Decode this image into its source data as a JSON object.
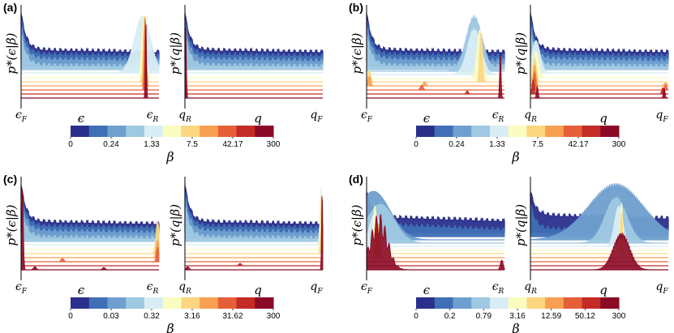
{
  "figure": {
    "y_labels": [
      "p*(ϵ|β)",
      "p*(q|β)"
    ],
    "colorbar_label": "β",
    "palette": [
      "#2a2f8c",
      "#3f6fb4",
      "#6f9fcf",
      "#9fc8e2",
      "#d8edf4",
      "#fafcc0",
      "#fcd681",
      "#f7a052",
      "#e55f38",
      "#c42a26",
      "#8b0a26"
    ]
  },
  "chart_data": [
    {
      "panel": "(a)",
      "type": "area",
      "subplots": [
        {
          "variable": "ϵ",
          "xlabel": "ϵ",
          "x_ticks": [
            "ϵF",
            "ϵR"
          ],
          "ylabel": "p*(ϵ|β)"
        },
        {
          "variable": "q",
          "xlabel": "q",
          "x_ticks": [
            "qR",
            "qF"
          ],
          "ylabel": "p*(q|β)"
        }
      ],
      "colorbar": {
        "label": "β",
        "ticks": [
          "0",
          "0.24",
          "1.33",
          "7.5",
          "42.17",
          "300"
        ]
      }
    },
    {
      "panel": "(b)",
      "type": "area",
      "subplots": [
        {
          "variable": "ϵ",
          "xlabel": "ϵ",
          "x_ticks": [
            "ϵF",
            "ϵR"
          ],
          "ylabel": "p*(ϵ|β)"
        },
        {
          "variable": "q",
          "xlabel": "q",
          "x_ticks": [
            "qR",
            "qF"
          ],
          "ylabel": "p*(q|β)"
        }
      ],
      "colorbar": {
        "label": "β",
        "ticks": [
          "0",
          "0.24",
          "1.33",
          "7.5",
          "42.17",
          "300"
        ]
      }
    },
    {
      "panel": "(c)",
      "type": "area",
      "subplots": [
        {
          "variable": "ϵ",
          "xlabel": "ϵ",
          "x_ticks": [
            "ϵF",
            "ϵR"
          ],
          "ylabel": "p*(ϵ|β)"
        },
        {
          "variable": "q",
          "xlabel": "q",
          "x_ticks": [
            "qR",
            "qF"
          ],
          "ylabel": "p*(q|β)"
        }
      ],
      "colorbar": {
        "label": "β",
        "ticks": [
          "0",
          "0.03",
          "0.32",
          "3.16",
          "31.62",
          "300"
        ]
      }
    },
    {
      "panel": "(d)",
      "type": "area",
      "subplots": [
        {
          "variable": "ϵ",
          "xlabel": "ϵ",
          "x_ticks": [
            "ϵF",
            "ϵR"
          ],
          "ylabel": "p*(ϵ|β)"
        },
        {
          "variable": "q",
          "xlabel": "q",
          "x_ticks": [
            "qR",
            "qF"
          ],
          "ylabel": "p*(q|β)"
        }
      ],
      "colorbar": {
        "label": "β",
        "ticks": [
          "0",
          "0.2",
          "0.79",
          "3.16",
          "12.59",
          "50.12",
          "300"
        ]
      }
    }
  ]
}
